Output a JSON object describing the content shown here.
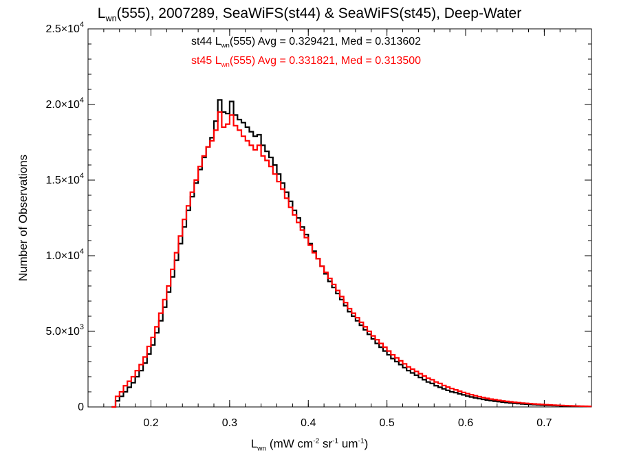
{
  "chart_data": {
    "type": "step-histogram",
    "title": {
      "prefix": "L",
      "sub": "wn",
      "suffix": "(555), 2007289, SeaWiFS(st44) & SeaWiFS(st45), Deep-Water"
    },
    "xlabel": {
      "main": "L",
      "sub": "wn",
      "unit_start": " (mW cm",
      "sup1": "-2",
      "mid1": " sr",
      "sup2": "-1",
      "mid2": " um",
      "sup3": "-1",
      "unit_end": ")"
    },
    "ylabel": "Number of Observations",
    "xlim": [
      0.12,
      0.76
    ],
    "ylim": [
      0,
      25000
    ],
    "x_ticks": [
      {
        "value": 0.2,
        "label": "0.2"
      },
      {
        "value": 0.3,
        "label": "0.3"
      },
      {
        "value": 0.4,
        "label": "0.4"
      },
      {
        "value": 0.5,
        "label": "0.5"
      },
      {
        "value": 0.6,
        "label": "0.6"
      },
      {
        "value": 0.7,
        "label": "0.7"
      }
    ],
    "y_ticks": [
      {
        "value": 0,
        "mantissa": "0",
        "exp": ""
      },
      {
        "value": 5000,
        "mantissa": "5.0×10",
        "exp": "3"
      },
      {
        "value": 10000,
        "mantissa": "1.0×10",
        "exp": "4"
      },
      {
        "value": 15000,
        "mantissa": "1.5×10",
        "exp": "4"
      },
      {
        "value": 20000,
        "mantissa": "2.0×10",
        "exp": "4"
      },
      {
        "value": 25000,
        "mantissa": "2.5×10",
        "exp": "4"
      }
    ],
    "series": [
      {
        "name": "st44",
        "color": "#000000",
        "stat_prefix": "st44 L",
        "stat_sub": "wn",
        "stat_suffix": "(555) Avg = 0.329421, Med = 0.313602",
        "points": [
          [
            0.15,
            0
          ],
          [
            0.155,
            400
          ],
          [
            0.16,
            700
          ],
          [
            0.165,
            1000
          ],
          [
            0.17,
            1300
          ],
          [
            0.175,
            1600
          ],
          [
            0.18,
            2000
          ],
          [
            0.185,
            2400
          ],
          [
            0.19,
            2900
          ],
          [
            0.195,
            3500
          ],
          [
            0.2,
            4100
          ],
          [
            0.205,
            4900
          ],
          [
            0.21,
            5700
          ],
          [
            0.215,
            6600
          ],
          [
            0.22,
            7600
          ],
          [
            0.225,
            8600
          ],
          [
            0.23,
            9700
          ],
          [
            0.235,
            10800
          ],
          [
            0.24,
            11900
          ],
          [
            0.245,
            13000
          ],
          [
            0.25,
            13900
          ],
          [
            0.255,
            14800
          ],
          [
            0.26,
            15700
          ],
          [
            0.265,
            16500
          ],
          [
            0.27,
            17200
          ],
          [
            0.275,
            17800
          ],
          [
            0.28,
            18900
          ],
          [
            0.285,
            20300
          ],
          [
            0.29,
            19500
          ],
          [
            0.295,
            19400
          ],
          [
            0.3,
            20200
          ],
          [
            0.305,
            19300
          ],
          [
            0.31,
            19000
          ],
          [
            0.315,
            18800
          ],
          [
            0.32,
            18500
          ],
          [
            0.325,
            18200
          ],
          [
            0.33,
            17900
          ],
          [
            0.335,
            18000
          ],
          [
            0.34,
            17300
          ],
          [
            0.345,
            16900
          ],
          [
            0.35,
            16500
          ],
          [
            0.355,
            16000
          ],
          [
            0.36,
            15400
          ],
          [
            0.365,
            14800
          ],
          [
            0.37,
            14200
          ],
          [
            0.375,
            13600
          ],
          [
            0.38,
            13000
          ],
          [
            0.385,
            12500
          ],
          [
            0.39,
            11900
          ],
          [
            0.395,
            11400
          ],
          [
            0.4,
            10800
          ],
          [
            0.405,
            10300
          ],
          [
            0.41,
            9800
          ],
          [
            0.415,
            9300
          ],
          [
            0.42,
            8800
          ],
          [
            0.425,
            8300
          ],
          [
            0.43,
            7900
          ],
          [
            0.435,
            7500
          ],
          [
            0.44,
            7100
          ],
          [
            0.445,
            6700
          ],
          [
            0.45,
            6300
          ],
          [
            0.455,
            6000
          ],
          [
            0.46,
            5700
          ],
          [
            0.465,
            5400
          ],
          [
            0.47,
            5100
          ],
          [
            0.475,
            4800
          ],
          [
            0.48,
            4500
          ],
          [
            0.485,
            4200
          ],
          [
            0.49,
            3950
          ],
          [
            0.495,
            3700
          ],
          [
            0.5,
            3450
          ],
          [
            0.505,
            3200
          ],
          [
            0.51,
            3000
          ],
          [
            0.515,
            2800
          ],
          [
            0.52,
            2600
          ],
          [
            0.525,
            2400
          ],
          [
            0.53,
            2250
          ],
          [
            0.535,
            2100
          ],
          [
            0.54,
            1950
          ],
          [
            0.545,
            1800
          ],
          [
            0.55,
            1650
          ],
          [
            0.555,
            1550
          ],
          [
            0.56,
            1400
          ],
          [
            0.565,
            1300
          ],
          [
            0.57,
            1200
          ],
          [
            0.575,
            1100
          ],
          [
            0.58,
            1000
          ],
          [
            0.585,
            950
          ],
          [
            0.59,
            870
          ],
          [
            0.595,
            800
          ],
          [
            0.6,
            720
          ],
          [
            0.605,
            660
          ],
          [
            0.61,
            600
          ],
          [
            0.615,
            550
          ],
          [
            0.62,
            500
          ],
          [
            0.625,
            460
          ],
          [
            0.63,
            420
          ],
          [
            0.635,
            380
          ],
          [
            0.64,
            350
          ],
          [
            0.645,
            320
          ],
          [
            0.65,
            290
          ],
          [
            0.655,
            260
          ],
          [
            0.66,
            240
          ],
          [
            0.665,
            220
          ],
          [
            0.67,
            200
          ],
          [
            0.675,
            180
          ],
          [
            0.68,
            165
          ],
          [
            0.685,
            150
          ],
          [
            0.69,
            135
          ],
          [
            0.695,
            120
          ],
          [
            0.7,
            110
          ],
          [
            0.705,
            100
          ],
          [
            0.71,
            90
          ],
          [
            0.715,
            80
          ],
          [
            0.72,
            72
          ],
          [
            0.725,
            64
          ],
          [
            0.73,
            58
          ],
          [
            0.735,
            52
          ],
          [
            0.74,
            46
          ],
          [
            0.745,
            40
          ],
          [
            0.75,
            35
          ],
          [
            0.755,
            30
          ]
        ]
      },
      {
        "name": "st45",
        "color": "#ff0000",
        "stat_prefix": "st45 L",
        "stat_sub": "wn",
        "stat_suffix": "(555) Avg = 0.331821, Med = 0.313500",
        "points": [
          [
            0.15,
            0
          ],
          [
            0.155,
            700
          ],
          [
            0.16,
            1000
          ],
          [
            0.165,
            1400
          ],
          [
            0.17,
            1700
          ],
          [
            0.175,
            2000
          ],
          [
            0.18,
            2400
          ],
          [
            0.185,
            2800
          ],
          [
            0.19,
            3300
          ],
          [
            0.195,
            4000
          ],
          [
            0.2,
            4600
          ],
          [
            0.205,
            5300
          ],
          [
            0.21,
            6200
          ],
          [
            0.215,
            7100
          ],
          [
            0.22,
            8000
          ],
          [
            0.225,
            9100
          ],
          [
            0.23,
            10200
          ],
          [
            0.235,
            11300
          ],
          [
            0.24,
            12400
          ],
          [
            0.245,
            13300
          ],
          [
            0.25,
            14200
          ],
          [
            0.255,
            15000
          ],
          [
            0.26,
            15900
          ],
          [
            0.265,
            16600
          ],
          [
            0.27,
            17200
          ],
          [
            0.275,
            17600
          ],
          [
            0.28,
            18300
          ],
          [
            0.285,
            19500
          ],
          [
            0.29,
            18500
          ],
          [
            0.295,
            18700
          ],
          [
            0.3,
            19300
          ],
          [
            0.305,
            18600
          ],
          [
            0.31,
            18300
          ],
          [
            0.315,
            17900
          ],
          [
            0.32,
            17600
          ],
          [
            0.325,
            17300
          ],
          [
            0.33,
            17000
          ],
          [
            0.335,
            17300
          ],
          [
            0.34,
            16600
          ],
          [
            0.345,
            16300
          ],
          [
            0.35,
            15900
          ],
          [
            0.355,
            15400
          ],
          [
            0.36,
            14900
          ],
          [
            0.365,
            14400
          ],
          [
            0.37,
            13800
          ],
          [
            0.375,
            13200
          ],
          [
            0.38,
            12700
          ],
          [
            0.385,
            12200
          ],
          [
            0.39,
            11700
          ],
          [
            0.395,
            11200
          ],
          [
            0.4,
            10700
          ],
          [
            0.405,
            10200
          ],
          [
            0.41,
            9800
          ],
          [
            0.415,
            9300
          ],
          [
            0.42,
            8900
          ],
          [
            0.425,
            8500
          ],
          [
            0.43,
            8100
          ],
          [
            0.435,
            7700
          ],
          [
            0.44,
            7300
          ],
          [
            0.445,
            6900
          ],
          [
            0.45,
            6500
          ],
          [
            0.455,
            6200
          ],
          [
            0.46,
            5900
          ],
          [
            0.465,
            5600
          ],
          [
            0.47,
            5300
          ],
          [
            0.475,
            5000
          ],
          [
            0.48,
            4700
          ],
          [
            0.485,
            4450
          ],
          [
            0.49,
            4200
          ],
          [
            0.495,
            3950
          ],
          [
            0.5,
            3700
          ],
          [
            0.505,
            3450
          ],
          [
            0.51,
            3250
          ],
          [
            0.515,
            3050
          ],
          [
            0.52,
            2850
          ],
          [
            0.525,
            2650
          ],
          [
            0.53,
            2500
          ],
          [
            0.535,
            2350
          ],
          [
            0.54,
            2200
          ],
          [
            0.545,
            2050
          ],
          [
            0.55,
            1900
          ],
          [
            0.555,
            1800
          ],
          [
            0.56,
            1650
          ],
          [
            0.565,
            1550
          ],
          [
            0.57,
            1420
          ],
          [
            0.575,
            1320
          ],
          [
            0.58,
            1220
          ],
          [
            0.585,
            1130
          ],
          [
            0.59,
            1040
          ],
          [
            0.595,
            960
          ],
          [
            0.6,
            880
          ],
          [
            0.605,
            810
          ],
          [
            0.61,
            740
          ],
          [
            0.615,
            680
          ],
          [
            0.62,
            620
          ],
          [
            0.625,
            570
          ],
          [
            0.63,
            520
          ],
          [
            0.635,
            480
          ],
          [
            0.64,
            440
          ],
          [
            0.645,
            400
          ],
          [
            0.65,
            370
          ],
          [
            0.655,
            340
          ],
          [
            0.66,
            310
          ],
          [
            0.665,
            285
          ],
          [
            0.67,
            260
          ],
          [
            0.675,
            240
          ],
          [
            0.68,
            220
          ],
          [
            0.685,
            200
          ],
          [
            0.69,
            180
          ],
          [
            0.695,
            165
          ],
          [
            0.7,
            150
          ],
          [
            0.705,
            135
          ],
          [
            0.71,
            120
          ],
          [
            0.715,
            108
          ],
          [
            0.72,
            96
          ],
          [
            0.725,
            86
          ],
          [
            0.73,
            76
          ],
          [
            0.735,
            68
          ],
          [
            0.74,
            60
          ],
          [
            0.745,
            52
          ],
          [
            0.75,
            45
          ],
          [
            0.755,
            40
          ]
        ]
      }
    ]
  }
}
